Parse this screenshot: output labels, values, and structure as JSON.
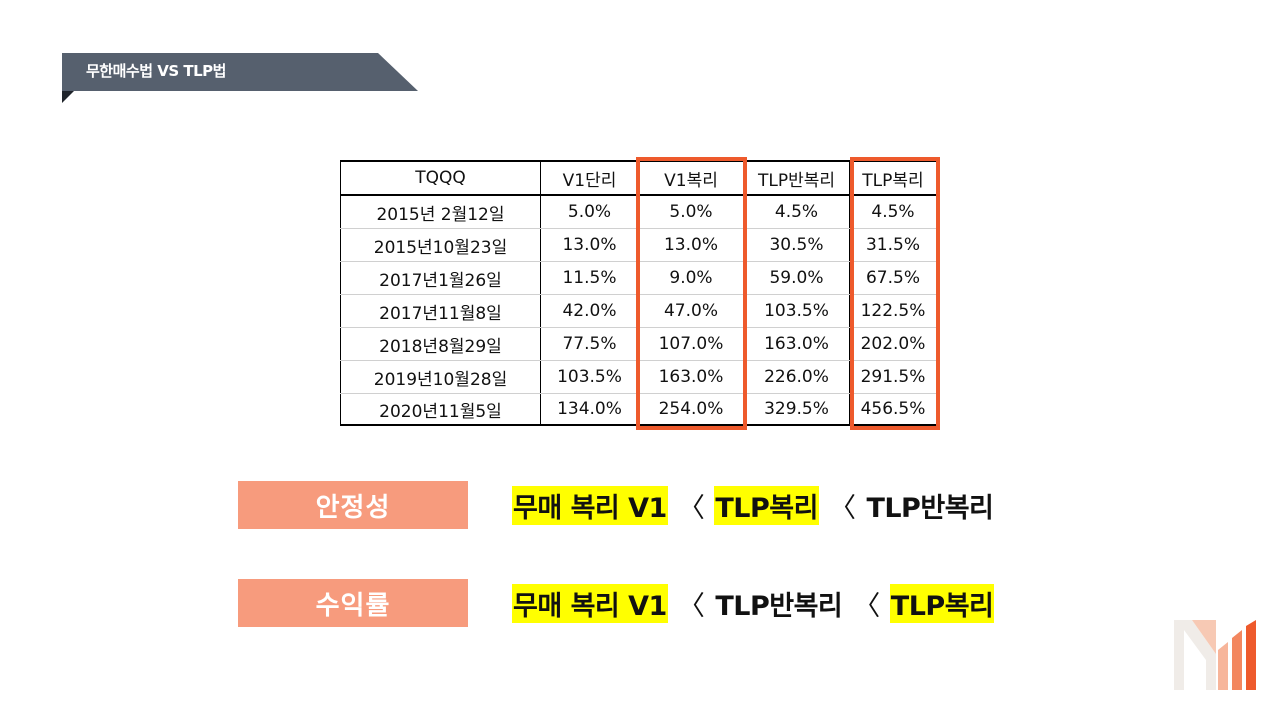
{
  "header": {
    "title": "무한매수법 VS TLP법"
  },
  "table": {
    "columns": [
      "TQQQ",
      "V1단리",
      "V1복리",
      "TLP반복리",
      "TLP복리"
    ],
    "rows": [
      [
        "2015년 2월12일",
        "5.0%",
        "5.0%",
        "4.5%",
        "4.5%"
      ],
      [
        "2015년10월23일",
        "13.0%",
        "13.0%",
        "30.5%",
        "31.5%"
      ],
      [
        "2017년1월26일",
        "11.5%",
        "9.0%",
        "59.0%",
        "67.5%"
      ],
      [
        "2017년11월8일",
        "42.0%",
        "47.0%",
        "103.5%",
        "122.5%"
      ],
      [
        "2018년8월29일",
        "77.5%",
        "107.0%",
        "163.0%",
        "202.0%"
      ],
      [
        "2019년10월28일",
        "103.5%",
        "163.0%",
        "226.0%",
        "291.5%"
      ],
      [
        "2020년11월5일",
        "134.0%",
        "254.0%",
        "329.5%",
        "456.5%"
      ]
    ],
    "highlight_color": "#ee5a2c"
  },
  "comparisons": [
    {
      "label": "안정성",
      "terms": [
        {
          "text": "무매 복리 V1",
          "highlight": true
        },
        {
          "text": "TLP복리",
          "highlight": true
        },
        {
          "text": "TLP반복리",
          "highlight": false
        }
      ],
      "separator": "〈"
    },
    {
      "label": "수익률",
      "terms": [
        {
          "text": "무매 복리 V1",
          "highlight": true
        },
        {
          "text": "TLP반복리",
          "highlight": false
        },
        {
          "text": "TLP복리",
          "highlight": true
        }
      ],
      "separator": "〈"
    }
  ],
  "colors": {
    "label_bg": "#f79b7d",
    "highlight": "#ffff00",
    "banner": "#56606e"
  },
  "logo": {
    "icon": "m-chart-logo-icon"
  }
}
